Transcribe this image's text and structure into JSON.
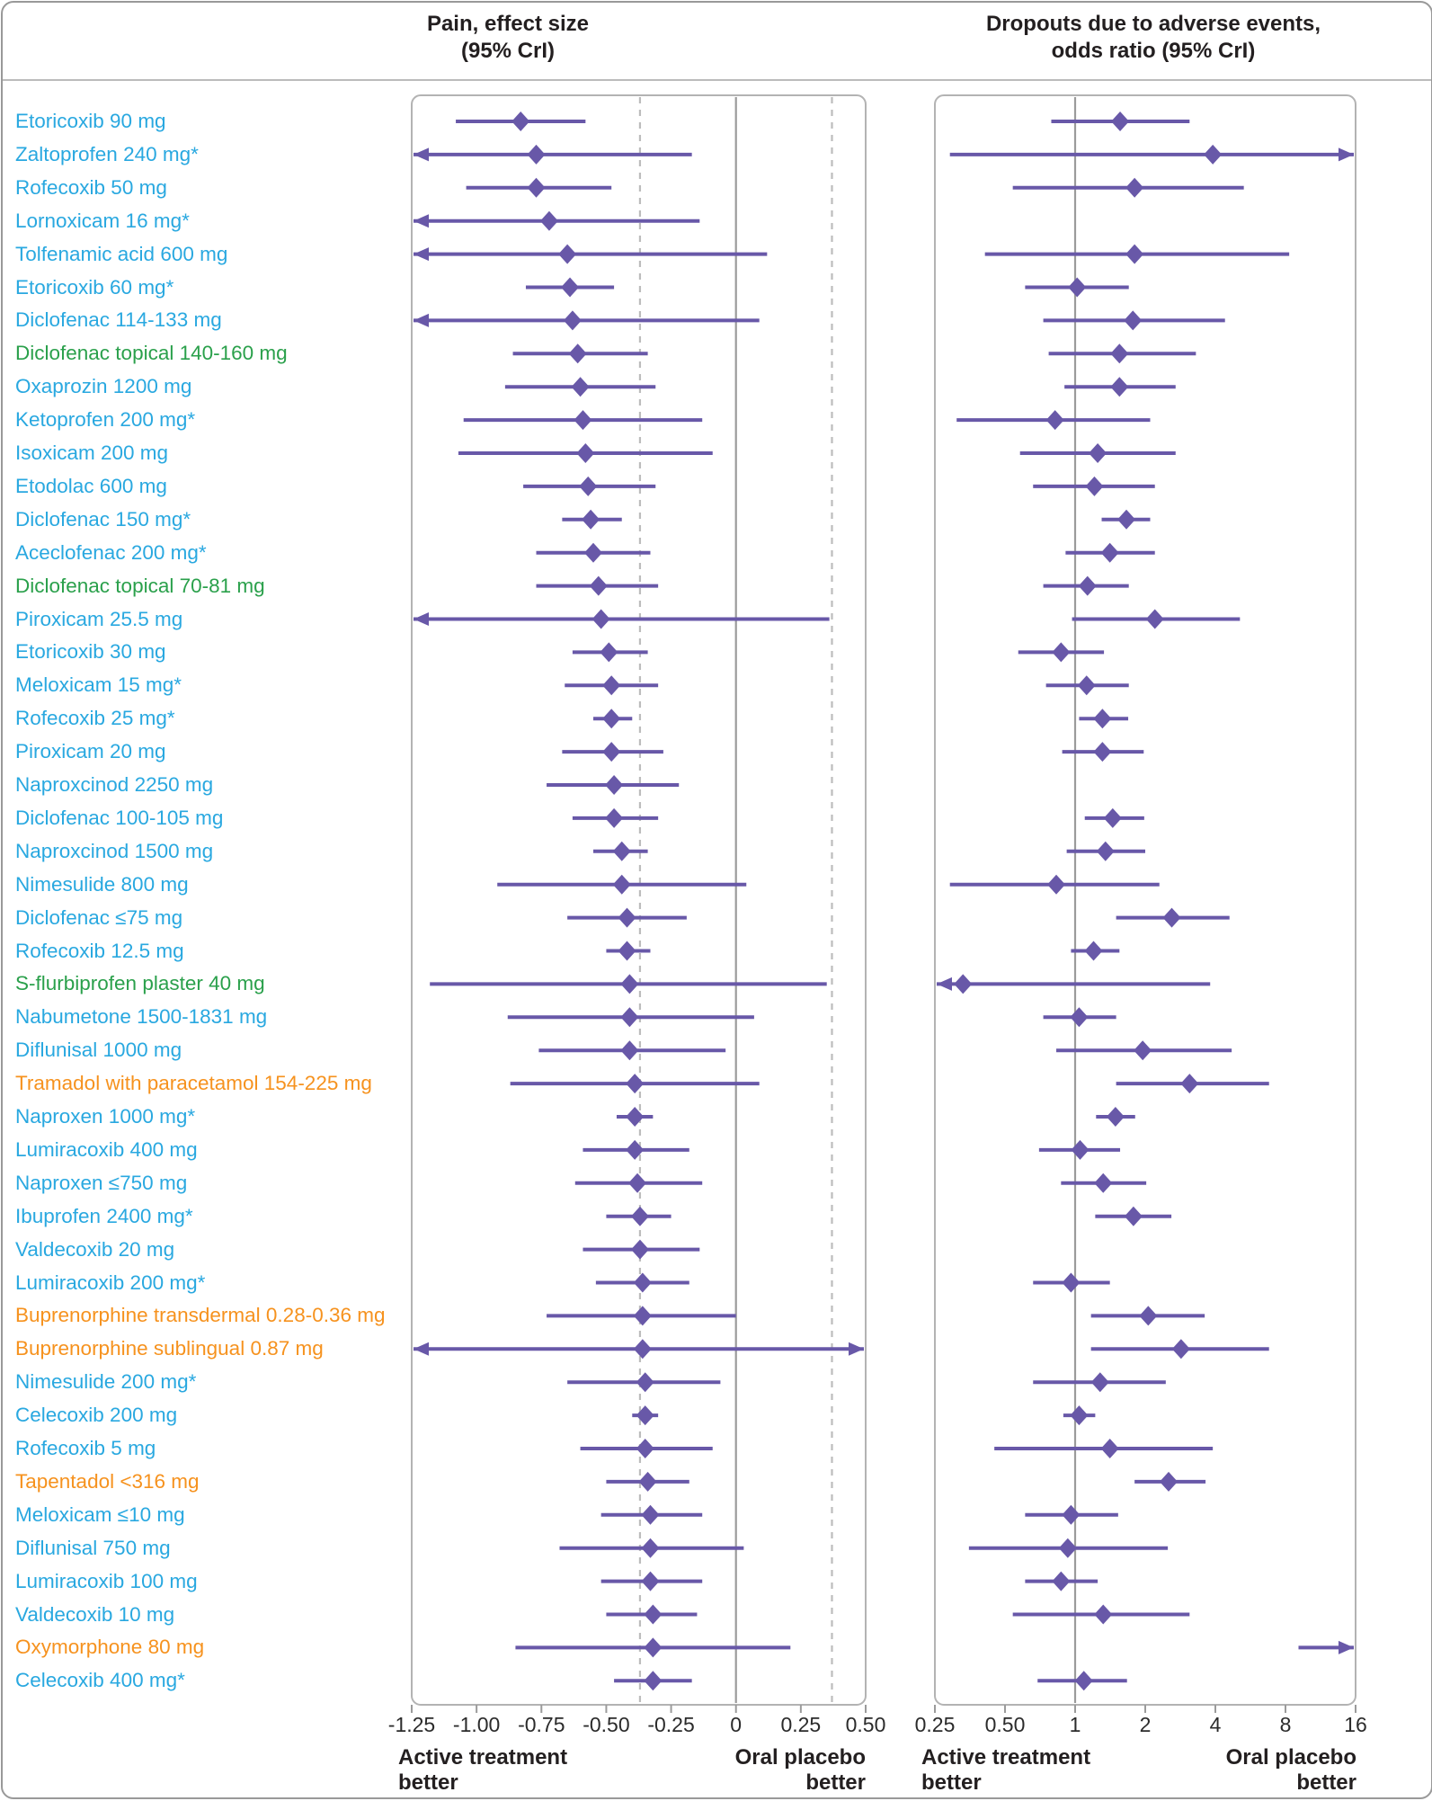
{
  "header": {
    "pain_title_line1": "Pain, effect size",
    "pain_title_line2": "(95% CrI)",
    "dropouts_title_line1": "Dropouts due to adverse events,",
    "dropouts_title_line2": "odds ratio (95% CrI)"
  },
  "colors": {
    "blue": "#29a8e0",
    "green": "#2aa04b",
    "orange": "#f6921e",
    "purple": "#6858a8",
    "dashed_line": "#bcbcbc",
    "reference_line": "#9b9b9b",
    "panel_border": "#b3b3b3",
    "outer_border": "#999999",
    "text": "#231f20"
  },
  "chart_data": {
    "type": "forest",
    "panels": [
      {
        "id": "pain",
        "title": "Pain, effect size (95% CrI)",
        "scale": "linear",
        "xlim": [
          -1.25,
          0.5
        ],
        "ticks": [
          {
            "v": -1.25,
            "label": "-1.25"
          },
          {
            "v": -1.0,
            "label": "-1.00"
          },
          {
            "v": -0.75,
            "label": "-0.75"
          },
          {
            "v": -0.5,
            "label": "-0.50"
          },
          {
            "v": -0.25,
            "label": "-0.25"
          },
          {
            "v": 0,
            "label": "0"
          },
          {
            "v": 0.25,
            "label": "0.25"
          },
          {
            "v": 0.5,
            "label": "0.50"
          }
        ],
        "reference_line": 0,
        "dashed_lines": [
          -0.37,
          0.37
        ],
        "better_left": "Active treatment\nbetter",
        "better_right": "Oral placebo\nbetter"
      },
      {
        "id": "dropouts",
        "title": "Dropouts due to adverse events, odds ratio (95% CrI)",
        "scale": "log2",
        "xlim": [
          0.25,
          16
        ],
        "ticks": [
          {
            "v": 0.25,
            "label": "0.25"
          },
          {
            "v": 0.5,
            "label": "0.50"
          },
          {
            "v": 1,
            "label": "1"
          },
          {
            "v": 2,
            "label": "2"
          },
          {
            "v": 4,
            "label": "4"
          },
          {
            "v": 8,
            "label": "8"
          },
          {
            "v": 16,
            "label": "16"
          }
        ],
        "reference_line": 1,
        "dashed_lines": [],
        "better_left": "Active treatment\nbetter",
        "better_right": "Oral placebo\nbetter"
      }
    ],
    "rows": [
      {
        "label": "Etoricoxib 90 mg",
        "color": "blue",
        "pain": {
          "est": -0.83,
          "lo": -1.08,
          "hi": -0.58
        },
        "dropouts": {
          "est": 1.56,
          "lo": 0.79,
          "hi": 3.1
        }
      },
      {
        "label": "Zaltoprofen 240 mg*",
        "color": "blue",
        "pain": {
          "est": -0.77,
          "lo": -1.25,
          "hi": -0.17,
          "lo_arrow": true
        },
        "dropouts": {
          "est": 3.9,
          "lo": 0.29,
          "hi": 16,
          "hi_arrow": true
        }
      },
      {
        "label": "Rofecoxib 50 mg",
        "color": "blue",
        "pain": {
          "est": -0.77,
          "lo": -1.04,
          "hi": -0.48
        },
        "dropouts": {
          "est": 1.8,
          "lo": 0.54,
          "hi": 5.3
        }
      },
      {
        "label": "Lornoxicam 16 mg*",
        "color": "blue",
        "pain": {
          "est": -0.72,
          "lo": -1.25,
          "hi": -0.14,
          "lo_arrow": true
        },
        "dropouts": null
      },
      {
        "label": "Tolfenamic acid 600 mg",
        "color": "blue",
        "pain": {
          "est": -0.65,
          "lo": -1.25,
          "hi": 0.12,
          "lo_arrow": true
        },
        "dropouts": {
          "est": 1.8,
          "lo": 0.41,
          "hi": 8.3
        }
      },
      {
        "label": "Etoricoxib 60 mg*",
        "color": "blue",
        "pain": {
          "est": -0.64,
          "lo": -0.81,
          "hi": -0.47
        },
        "dropouts": {
          "est": 1.02,
          "lo": 0.61,
          "hi": 1.7
        }
      },
      {
        "label": "Diclofenac 114-133 mg",
        "color": "blue",
        "pain": {
          "est": -0.63,
          "lo": -1.25,
          "hi": 0.09,
          "lo_arrow": true
        },
        "dropouts": {
          "est": 1.77,
          "lo": 0.73,
          "hi": 4.4
        }
      },
      {
        "label": "Diclofenac topical 140-160 mg",
        "color": "green",
        "pain": {
          "est": -0.61,
          "lo": -0.86,
          "hi": -0.34
        },
        "dropouts": {
          "est": 1.55,
          "lo": 0.77,
          "hi": 3.3
        }
      },
      {
        "label": "Oxaprozin 1200 mg",
        "color": "blue",
        "pain": {
          "est": -0.6,
          "lo": -0.89,
          "hi": -0.31
        },
        "dropouts": {
          "est": 1.55,
          "lo": 0.9,
          "hi": 2.7
        }
      },
      {
        "label": "Ketoprofen 200 mg*",
        "color": "blue",
        "pain": {
          "est": -0.59,
          "lo": -1.05,
          "hi": -0.13
        },
        "dropouts": {
          "est": 0.82,
          "lo": 0.31,
          "hi": 2.1
        }
      },
      {
        "label": "Isoxicam 200 mg",
        "color": "blue",
        "pain": {
          "est": -0.58,
          "lo": -1.07,
          "hi": -0.09
        },
        "dropouts": {
          "est": 1.25,
          "lo": 0.58,
          "hi": 2.7
        }
      },
      {
        "label": "Etodolac 600 mg",
        "color": "blue",
        "pain": {
          "est": -0.57,
          "lo": -0.82,
          "hi": -0.31
        },
        "dropouts": {
          "est": 1.21,
          "lo": 0.66,
          "hi": 2.2
        }
      },
      {
        "label": "Diclofenac 150 mg*",
        "color": "blue",
        "pain": {
          "est": -0.56,
          "lo": -0.67,
          "hi": -0.44
        },
        "dropouts": {
          "est": 1.66,
          "lo": 1.3,
          "hi": 2.1
        }
      },
      {
        "label": "Aceclofenac 200 mg*",
        "color": "blue",
        "pain": {
          "est": -0.55,
          "lo": -0.77,
          "hi": -0.33
        },
        "dropouts": {
          "est": 1.41,
          "lo": 0.91,
          "hi": 2.2
        }
      },
      {
        "label": "Diclofenac topical 70-81 mg",
        "color": "green",
        "pain": {
          "est": -0.53,
          "lo": -0.77,
          "hi": -0.3
        },
        "dropouts": {
          "est": 1.13,
          "lo": 0.73,
          "hi": 1.7
        }
      },
      {
        "label": "Piroxicam 25.5 mg",
        "color": "blue",
        "pain": {
          "est": -0.52,
          "lo": -1.25,
          "hi": 0.36,
          "lo_arrow": true
        },
        "dropouts": {
          "est": 2.2,
          "lo": 0.97,
          "hi": 5.1
        }
      },
      {
        "label": "Etoricoxib 30 mg",
        "color": "blue",
        "pain": {
          "est": -0.49,
          "lo": -0.63,
          "hi": -0.34
        },
        "dropouts": {
          "est": 0.87,
          "lo": 0.57,
          "hi": 1.33
        }
      },
      {
        "label": "Meloxicam 15 mg*",
        "color": "blue",
        "pain": {
          "est": -0.48,
          "lo": -0.66,
          "hi": -0.3
        },
        "dropouts": {
          "est": 1.12,
          "lo": 0.75,
          "hi": 1.7
        }
      },
      {
        "label": "Rofecoxib 25 mg*",
        "color": "blue",
        "pain": {
          "est": -0.48,
          "lo": -0.55,
          "hi": -0.4
        },
        "dropouts": {
          "est": 1.31,
          "lo": 1.04,
          "hi": 1.69
        }
      },
      {
        "label": "Piroxicam 20 mg",
        "color": "blue",
        "pain": {
          "est": -0.48,
          "lo": -0.67,
          "hi": -0.28
        },
        "dropouts": {
          "est": 1.31,
          "lo": 0.88,
          "hi": 1.97
        }
      },
      {
        "label": "Naproxcinod 2250 mg",
        "color": "blue",
        "pain": {
          "est": -0.47,
          "lo": -0.73,
          "hi": -0.22
        },
        "dropouts": null
      },
      {
        "label": "Diclofenac 100-105 mg",
        "color": "blue",
        "pain": {
          "est": -0.47,
          "lo": -0.63,
          "hi": -0.3
        },
        "dropouts": {
          "est": 1.45,
          "lo": 1.1,
          "hi": 1.98
        }
      },
      {
        "label": "Naproxcinod 1500 mg",
        "color": "blue",
        "pain": {
          "est": -0.44,
          "lo": -0.55,
          "hi": -0.34
        },
        "dropouts": {
          "est": 1.35,
          "lo": 0.92,
          "hi": 2.0
        }
      },
      {
        "label": "Nimesulide 800 mg",
        "color": "blue",
        "pain": {
          "est": -0.44,
          "lo": -0.92,
          "hi": 0.04
        },
        "dropouts": {
          "est": 0.83,
          "lo": 0.29,
          "hi": 2.3
        }
      },
      {
        "label": "Diclofenac ≤75 mg",
        "color": "blue",
        "pain": {
          "est": -0.42,
          "lo": -0.65,
          "hi": -0.19
        },
        "dropouts": {
          "est": 2.6,
          "lo": 1.5,
          "hi": 4.6
        }
      },
      {
        "label": "Rofecoxib 12.5 mg",
        "color": "blue",
        "pain": {
          "est": -0.42,
          "lo": -0.5,
          "hi": -0.33
        },
        "dropouts": {
          "est": 1.2,
          "lo": 0.96,
          "hi": 1.55
        }
      },
      {
        "label": "S-flurbiprofen plaster 40 mg",
        "color": "green",
        "pain": {
          "est": -0.41,
          "lo": -1.18,
          "hi": 0.35
        },
        "dropouts": {
          "est": 0.33,
          "lo": 0.25,
          "hi": 3.8,
          "lo_arrow": true
        }
      },
      {
        "label": "Nabumetone 1500-1831 mg",
        "color": "blue",
        "pain": {
          "est": -0.41,
          "lo": -0.88,
          "hi": 0.07
        },
        "dropouts": {
          "est": 1.04,
          "lo": 0.73,
          "hi": 1.5
        }
      },
      {
        "label": "Diflunisal 1000 mg",
        "color": "blue",
        "pain": {
          "est": -0.41,
          "lo": -0.76,
          "hi": -0.04
        },
        "dropouts": {
          "est": 1.95,
          "lo": 0.83,
          "hi": 4.7
        }
      },
      {
        "label": "Tramadol with paracetamol 154-225 mg",
        "color": "orange",
        "pain": {
          "est": -0.39,
          "lo": -0.87,
          "hi": 0.09
        },
        "dropouts": {
          "est": 3.1,
          "lo": 1.5,
          "hi": 6.8
        }
      },
      {
        "label": "Naproxen 1000 mg*",
        "color": "blue",
        "pain": {
          "est": -0.39,
          "lo": -0.46,
          "hi": -0.32
        },
        "dropouts": {
          "est": 1.49,
          "lo": 1.23,
          "hi": 1.81
        }
      },
      {
        "label": "Lumiracoxib 400 mg",
        "color": "blue",
        "pain": {
          "est": -0.39,
          "lo": -0.59,
          "hi": -0.18
        },
        "dropouts": {
          "est": 1.05,
          "lo": 0.7,
          "hi": 1.56
        }
      },
      {
        "label": "Naproxen ≤750 mg",
        "color": "blue",
        "pain": {
          "est": -0.38,
          "lo": -0.62,
          "hi": -0.13
        },
        "dropouts": {
          "est": 1.32,
          "lo": 0.87,
          "hi": 2.02
        }
      },
      {
        "label": "Ibuprofen 2400 mg*",
        "color": "blue",
        "pain": {
          "est": -0.37,
          "lo": -0.5,
          "hi": -0.25
        },
        "dropouts": {
          "est": 1.78,
          "lo": 1.22,
          "hi": 2.59
        }
      },
      {
        "label": "Valdecoxib 20 mg",
        "color": "blue",
        "pain": {
          "est": -0.37,
          "lo": -0.59,
          "hi": -0.14
        },
        "dropouts": null
      },
      {
        "label": "Lumiracoxib 200 mg*",
        "color": "blue",
        "pain": {
          "est": -0.36,
          "lo": -0.54,
          "hi": -0.18
        },
        "dropouts": {
          "est": 0.96,
          "lo": 0.66,
          "hi": 1.41
        }
      },
      {
        "label": "Buprenorphine transdermal 0.28-0.36 mg",
        "color": "orange",
        "pain": {
          "est": -0.36,
          "lo": -0.73,
          "hi": 0.0
        },
        "dropouts": {
          "est": 2.06,
          "lo": 1.17,
          "hi": 3.6
        }
      },
      {
        "label": "Buprenorphine sublingual 0.87 mg",
        "color": "orange",
        "pain": {
          "est": -0.36,
          "lo": -1.25,
          "hi": 0.5,
          "lo_arrow": true,
          "hi_arrow": true
        },
        "dropouts": {
          "est": 2.85,
          "lo": 1.17,
          "hi": 6.8
        }
      },
      {
        "label": "Nimesulide 200 mg*",
        "color": "blue",
        "pain": {
          "est": -0.35,
          "lo": -0.65,
          "hi": -0.06
        },
        "dropouts": {
          "est": 1.28,
          "lo": 0.66,
          "hi": 2.45
        }
      },
      {
        "label": "Celecoxib 200 mg",
        "color": "blue",
        "pain": {
          "est": -0.35,
          "lo": -0.4,
          "hi": -0.3
        },
        "dropouts": {
          "est": 1.04,
          "lo": 0.89,
          "hi": 1.22
        }
      },
      {
        "label": "Rofecoxib 5 mg",
        "color": "blue",
        "pain": {
          "est": -0.35,
          "lo": -0.6,
          "hi": -0.09
        },
        "dropouts": {
          "est": 1.41,
          "lo": 0.45,
          "hi": 3.9
        }
      },
      {
        "label": "Tapentadol <316 mg",
        "color": "orange",
        "pain": {
          "est": -0.34,
          "lo": -0.5,
          "hi": -0.18
        },
        "dropouts": {
          "est": 2.52,
          "lo": 1.8,
          "hi": 3.63
        }
      },
      {
        "label": "Meloxicam ≤10 mg",
        "color": "blue",
        "pain": {
          "est": -0.33,
          "lo": -0.52,
          "hi": -0.13
        },
        "dropouts": {
          "est": 0.96,
          "lo": 0.61,
          "hi": 1.53
        }
      },
      {
        "label": "Diflunisal 750 mg",
        "color": "blue",
        "pain": {
          "est": -0.33,
          "lo": -0.68,
          "hi": 0.03
        },
        "dropouts": {
          "est": 0.93,
          "lo": 0.35,
          "hi": 2.5
        }
      },
      {
        "label": "Lumiracoxib 100 mg",
        "color": "blue",
        "pain": {
          "est": -0.33,
          "lo": -0.52,
          "hi": -0.13
        },
        "dropouts": {
          "est": 0.87,
          "lo": 0.61,
          "hi": 1.25
        }
      },
      {
        "label": "Valdecoxib 10 mg",
        "color": "blue",
        "pain": {
          "est": -0.32,
          "lo": -0.5,
          "hi": -0.15
        },
        "dropouts": {
          "est": 1.32,
          "lo": 0.54,
          "hi": 3.1
        }
      },
      {
        "label": "Oxymorphone 80 mg",
        "color": "orange",
        "pain": {
          "est": -0.32,
          "lo": -0.85,
          "hi": 0.21
        },
        "dropouts": {
          "est": null,
          "lo": 9.1,
          "hi": 16,
          "hi_arrow": true
        }
      },
      {
        "label": "Celecoxib 400 mg*",
        "color": "blue",
        "pain": {
          "est": -0.32,
          "lo": -0.47,
          "hi": -0.17
        },
        "dropouts": {
          "est": 1.09,
          "lo": 0.69,
          "hi": 1.67
        }
      }
    ]
  }
}
